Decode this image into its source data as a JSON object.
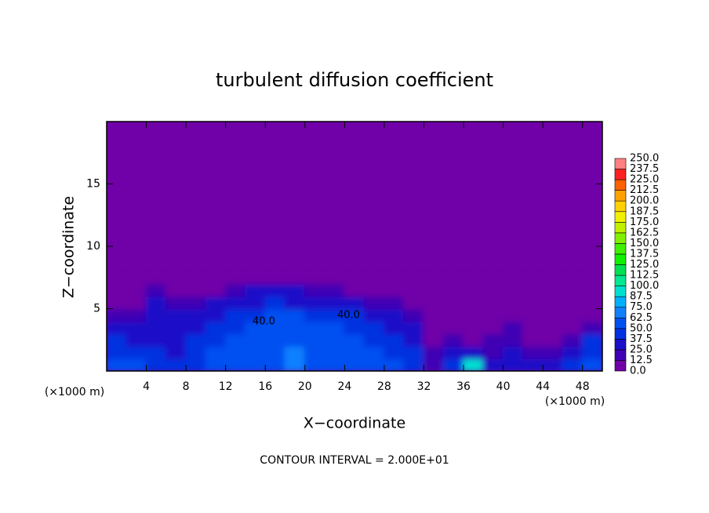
{
  "chart_data": {
    "type": "heatmap",
    "title": "turbulent diffusion coefficient",
    "x_label": "X−coordinate",
    "y_label": "Z−coordinate",
    "x_unit": "(×1000 m)",
    "x_unit_right": "(×1000 m)",
    "footer": "CONTOUR INTERVAL = 2.000E+01",
    "annotations": [
      "40.0",
      "40.0"
    ],
    "xlim": [
      0,
      50
    ],
    "ylim": [
      0,
      20
    ],
    "xticks": [
      4,
      8,
      12,
      16,
      20,
      24,
      28,
      32,
      36,
      40,
      44,
      48
    ],
    "yticks": [
      5,
      10,
      15
    ],
    "x": [
      1,
      3,
      5,
      7,
      9,
      11,
      13,
      15,
      17,
      19,
      21,
      23,
      25,
      27,
      29,
      31,
      33,
      35,
      37,
      39,
      41,
      43,
      45,
      47,
      49
    ],
    "y": [
      0.5,
      1.5,
      2.5,
      3.5,
      4.5,
      5.5,
      6.5,
      7.5
    ],
    "values": [
      [
        50,
        50,
        45,
        40,
        45,
        55,
        50,
        55,
        60,
        65,
        62,
        60,
        58,
        55,
        50,
        45,
        20,
        40,
        95,
        35,
        30,
        35,
        30,
        40,
        50
      ],
      [
        45,
        40,
        40,
        35,
        45,
        50,
        55,
        60,
        62,
        65,
        60,
        58,
        55,
        50,
        45,
        40,
        15,
        25,
        30,
        20,
        25,
        20,
        15,
        25,
        45
      ],
      [
        40,
        35,
        30,
        30,
        40,
        45,
        50,
        58,
        60,
        62,
        55,
        55,
        50,
        45,
        40,
        30,
        10,
        15,
        10,
        15,
        20,
        10,
        10,
        15,
        40
      ],
      [
        35,
        30,
        25,
        30,
        35,
        40,
        45,
        55,
        55,
        60,
        50,
        50,
        45,
        40,
        35,
        25,
        10,
        5,
        5,
        10,
        15,
        10,
        5,
        10,
        20
      ],
      [
        20,
        15,
        30,
        25,
        30,
        35,
        40,
        45,
        50,
        50,
        45,
        45,
        40,
        35,
        30,
        20,
        5,
        5,
        5,
        5,
        5,
        5,
        5,
        5,
        5
      ],
      [
        5,
        10,
        25,
        20,
        15,
        25,
        30,
        35,
        40,
        35,
        35,
        30,
        25,
        20,
        15,
        10,
        0,
        0,
        0,
        0,
        0,
        0,
        0,
        0,
        0
      ],
      [
        0,
        0,
        15,
        5,
        5,
        10,
        20,
        25,
        30,
        25,
        20,
        15,
        10,
        5,
        0,
        0,
        0,
        0,
        0,
        0,
        0,
        0,
        0,
        0,
        0
      ],
      [
        0,
        0,
        0,
        0,
        0,
        0,
        0,
        5,
        10,
        10,
        5,
        5,
        0,
        0,
        0,
        0,
        0,
        0,
        0,
        0,
        0,
        0,
        0,
        0,
        0
      ]
    ],
    "levels": [
      {
        "value": 0,
        "label": "0.0"
      },
      {
        "value": 12.5,
        "label": "12.5"
      },
      {
        "value": 25,
        "label": "25.0"
      },
      {
        "value": 37.5,
        "label": "37.5"
      },
      {
        "value": 50,
        "label": "50.0"
      },
      {
        "value": 62.5,
        "label": "62.5"
      },
      {
        "value": 75,
        "label": "75.0"
      },
      {
        "value": 87.5,
        "label": "87.5"
      },
      {
        "value": 100,
        "label": "100.0"
      },
      {
        "value": 112.5,
        "label": "112.5"
      },
      {
        "value": 125,
        "label": "125.0"
      },
      {
        "value": 137.5,
        "label": "137.5"
      },
      {
        "value": 150,
        "label": "150.0"
      },
      {
        "value": 162.5,
        "label": "162.5"
      },
      {
        "value": 175,
        "label": "175.0"
      },
      {
        "value": 187.5,
        "label": "187.5"
      },
      {
        "value": 200,
        "label": "200.0"
      },
      {
        "value": 212.5,
        "label": "212.5"
      },
      {
        "value": 225,
        "label": "225.0"
      },
      {
        "value": 237.5,
        "label": "237.5"
      },
      {
        "value": 250,
        "label": "250.0"
      }
    ],
    "colors": [
      "#7000a8",
      "#4000b4",
      "#1a10c8",
      "#0030e0",
      "#0050f0",
      "#1080ff",
      "#00b0ff",
      "#00e0d0",
      "#00e890",
      "#00e050",
      "#10f000",
      "#40f000",
      "#80f000",
      "#c0f000",
      "#f0f000",
      "#ffd000",
      "#ffa000",
      "#ff6000",
      "#ff2020",
      "#ff8080"
    ]
  }
}
